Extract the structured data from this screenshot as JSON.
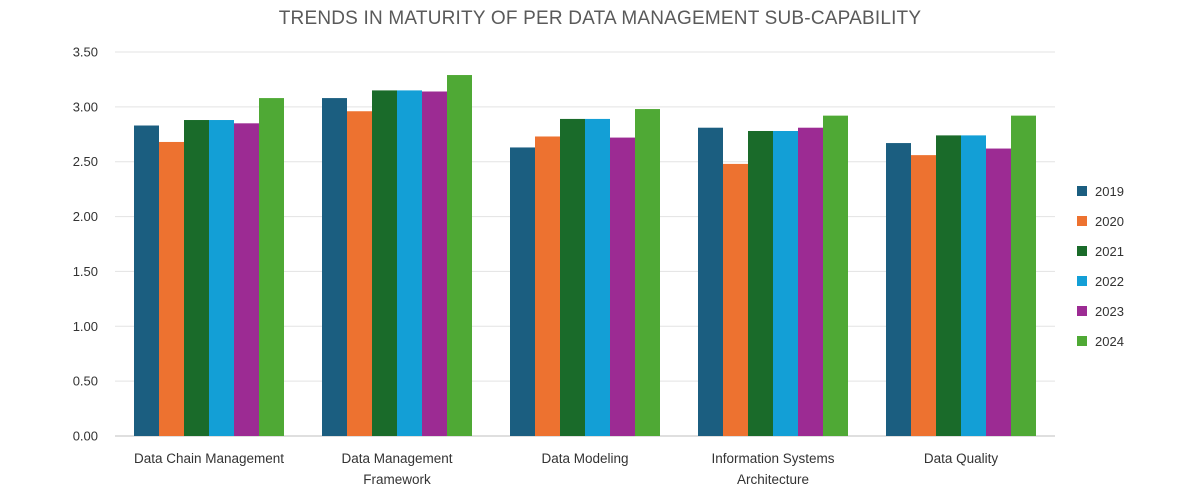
{
  "chart_data": {
    "type": "bar",
    "title": "TRENDS IN MATURITY OF PER DATA MANAGEMENT SUB-CAPABILITY",
    "xlabel": "",
    "ylabel": "",
    "ylim": [
      0,
      3.5
    ],
    "yticks": [
      "0.00",
      "0.50",
      "1.00",
      "1.50",
      "2.00",
      "2.50",
      "3.00",
      "3.50"
    ],
    "grid": true,
    "legend_position": "right",
    "categories": [
      [
        "Data Chain Management"
      ],
      [
        "Data Management",
        "Framework"
      ],
      [
        "Data Modeling"
      ],
      [
        "Information Systems",
        "Architecture"
      ],
      [
        "Data Quality"
      ]
    ],
    "series": [
      {
        "name": "2019",
        "color": "#1b5e80",
        "values": [
          2.83,
          3.08,
          2.63,
          2.81,
          2.67
        ]
      },
      {
        "name": "2020",
        "color": "#ed7230",
        "values": [
          2.68,
          2.96,
          2.73,
          2.48,
          2.56
        ]
      },
      {
        "name": "2021",
        "color": "#1a6b2a",
        "values": [
          2.88,
          3.15,
          2.89,
          2.78,
          2.74
        ]
      },
      {
        "name": "2022",
        "color": "#139fd6",
        "values": [
          2.88,
          3.15,
          2.89,
          2.78,
          2.74
        ]
      },
      {
        "name": "2023",
        "color": "#9c2b93",
        "values": [
          2.85,
          3.14,
          2.72,
          2.81,
          2.62
        ]
      },
      {
        "name": "2024",
        "color": "#4fa935",
        "values": [
          3.08,
          3.29,
          2.98,
          2.92,
          2.92
        ]
      }
    ]
  }
}
